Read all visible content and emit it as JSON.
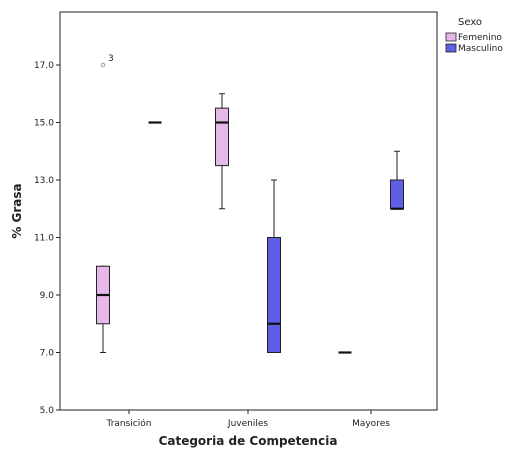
{
  "chart_data": {
    "type": "boxplot",
    "xlabel": "Categoria de Competencia",
    "ylabel": "% Grasa",
    "ylim": [
      5,
      19
    ],
    "yticks": [
      "5.0",
      "7.0",
      "9.0",
      "11.0",
      "13.0",
      "15.0",
      "17.0"
    ],
    "categories": [
      "Transición",
      "Juveniles",
      "Mayores"
    ],
    "legend": {
      "title": "Sexo",
      "placement": "right"
    },
    "series": [
      {
        "name": "Femenino",
        "color": "#e6b8ea",
        "boxes": [
          {
            "category": "Transición",
            "whisker_low": 7,
            "q1": 8,
            "median": 9,
            "q3": 10,
            "whisker_high": 10,
            "outliers": [
              {
                "value": 17,
                "label": "3"
              }
            ]
          },
          {
            "category": "Juveniles",
            "whisker_low": 12,
            "q1": 13.5,
            "median": 15,
            "q3": 15.5,
            "whisker_high": 16,
            "outliers": []
          },
          {
            "category": "Mayores",
            "whisker_low": 7,
            "q1": 7,
            "median": 7,
            "q3": 7,
            "whisker_high": 7,
            "outliers": []
          }
        ]
      },
      {
        "name": "Masculino",
        "color": "#5e5ee6",
        "boxes": [
          {
            "category": "Transición",
            "whisker_low": 15,
            "q1": 15,
            "median": 15,
            "q3": 15,
            "whisker_high": 15,
            "outliers": []
          },
          {
            "category": "Juveniles",
            "whisker_low": 7,
            "q1": 7,
            "median": 8,
            "q3": 11,
            "whisker_high": 13,
            "outliers": []
          },
          {
            "category": "Mayores",
            "whisker_low": 12,
            "q1": 12,
            "median": 12,
            "q3": 13,
            "whisker_high": 14,
            "outliers": []
          }
        ]
      }
    ]
  }
}
